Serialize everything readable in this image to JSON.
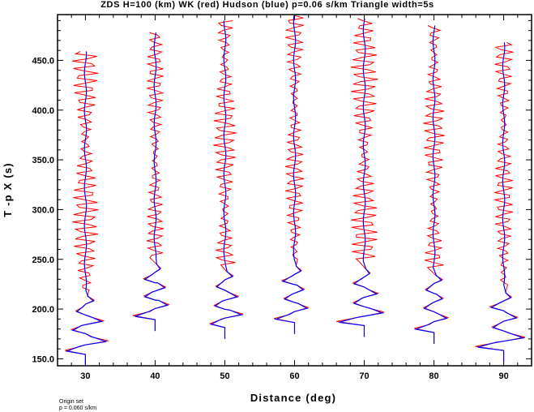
{
  "chart_data": {
    "type": "line",
    "title": "ZDS H=100 (km) WK (red) Hudson (blue) p=0.06 s/km Triangle width=5s",
    "xlabel": "Distance (deg)",
    "ylabel": "T -p X (s)",
    "xlim": [
      26,
      94
    ],
    "ylim": [
      143,
      496
    ],
    "x_ticks": [
      "30",
      "40",
      "50",
      "60",
      "70",
      "80",
      "90"
    ],
    "y_ticks": [
      "150.0",
      "200.0",
      "250.0",
      "300.0",
      "350.0",
      "400.0",
      "450.0"
    ],
    "grid": false,
    "legend": "none",
    "series": [
      {
        "name": "WK",
        "color": "#ff0000"
      },
      {
        "name": "Hudson",
        "color": "#0000ff"
      }
    ],
    "traces": [
      {
        "distance": 30,
        "start": 143,
        "end": 459,
        "trigger_amp": 4.1
      },
      {
        "distance": 40,
        "start": 178,
        "end": 478,
        "trigger_amp": 3.3
      },
      {
        "distance": 50,
        "start": 170,
        "end": 490,
        "trigger_amp": 3.2
      },
      {
        "distance": 60,
        "start": 175,
        "end": 495,
        "trigger_amp": 3.2
      },
      {
        "distance": 70,
        "start": 172,
        "end": 492,
        "trigger_amp": 3.4
      },
      {
        "distance": 80,
        "start": 165,
        "end": 485,
        "trigger_amp": 3.2
      },
      {
        "distance": 90,
        "start": 147,
        "end": 468,
        "trigger_amp": 3.6
      }
    ]
  },
  "footer": {
    "line1": "Origin set",
    "line2": "p = 0.060 s/km"
  }
}
